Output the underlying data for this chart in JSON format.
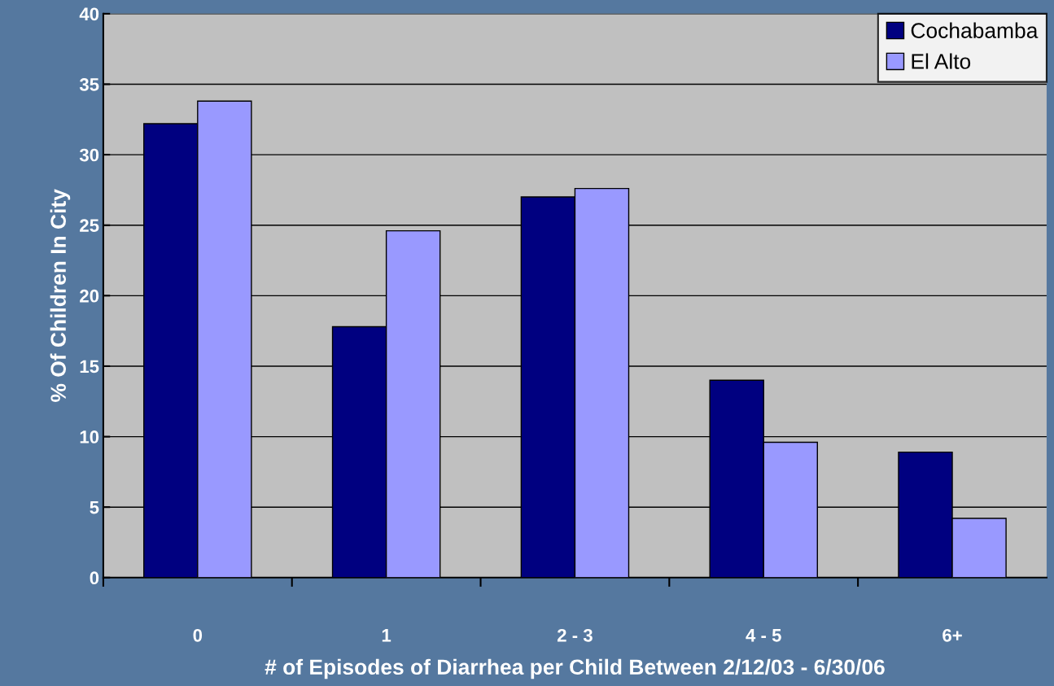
{
  "chart_data": {
    "type": "bar",
    "xlabel": "# of Episodes of Diarrhea per Child Between 2/12/03 - 6/30/06",
    "ylabel": "% Of Children In City",
    "categories": [
      "0",
      "1",
      "2 - 3",
      "4 - 5",
      "6+"
    ],
    "series": [
      {
        "name": "Cochabamba",
        "color": "#000080",
        "values": [
          32.2,
          17.8,
          27.0,
          14.0,
          8.9
        ]
      },
      {
        "name": "El Alto",
        "color": "#9999ff",
        "values": [
          33.8,
          24.6,
          27.6,
          9.6,
          4.2
        ]
      }
    ],
    "ylim": [
      0,
      40
    ],
    "yticks": [
      0,
      5,
      10,
      15,
      20,
      25,
      30,
      35,
      40
    ],
    "grid": "y",
    "legend": "top right"
  }
}
